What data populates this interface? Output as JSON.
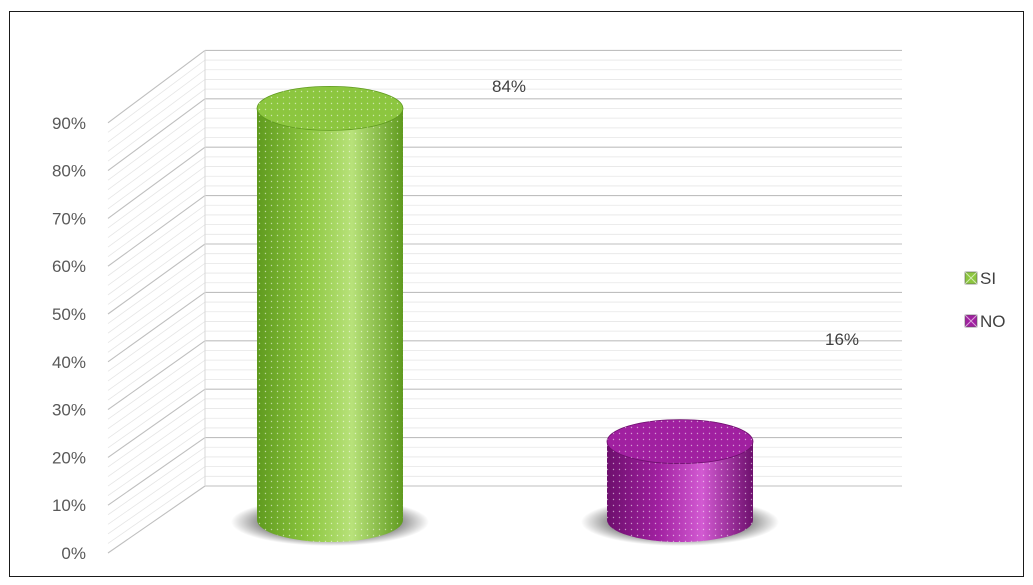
{
  "chart_data": {
    "type": "bar",
    "categories": [
      "SI",
      "NO"
    ],
    "values": [
      84,
      16
    ],
    "data_labels": [
      "84%",
      "16%"
    ],
    "y_ticks": [
      "0%",
      "10%",
      "20%",
      "30%",
      "40%",
      "50%",
      "60%",
      "70%",
      "80%",
      "90%"
    ],
    "ylim": [
      0,
      90
    ],
    "grid": true,
    "legend": {
      "position": "right",
      "entries": [
        {
          "label": "SI",
          "color": "#8cc63f"
        },
        {
          "label": "NO",
          "color": "#a020a0"
        }
      ]
    },
    "colors": {
      "si": "#8cc63f",
      "si_dark": "#5f9a1e",
      "si_light": "#b8e27a",
      "no": "#a020a0",
      "no_dark": "#6d0f6d",
      "no_light": "#d25ad2"
    }
  }
}
